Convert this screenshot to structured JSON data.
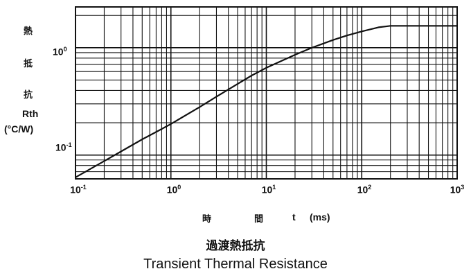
{
  "chart_data": {
    "type": "line",
    "title": "過渡熱抵抗",
    "subtitle": "Transient Thermal Resistance",
    "ylabel_chars": [
      "熱",
      "抵",
      "抗"
    ],
    "ylabel_symbol": "Rth",
    "ylabel_unit": "(°C/W)",
    "xlabel_chars": [
      "時",
      "間",
      "t",
      "(ms)"
    ],
    "x_scale": "log",
    "y_scale": "log",
    "xlim": [
      0.1,
      1000
    ],
    "ylim": [
      0.06,
      2.4
    ],
    "grid": true,
    "x_ticks": [
      {
        "base": "10",
        "exp": "-1"
      },
      {
        "base": "10",
        "exp": "0"
      },
      {
        "base": "10",
        "exp": "1"
      },
      {
        "base": "10",
        "exp": "2"
      },
      {
        "base": "10",
        "exp": "3"
      }
    ],
    "y_ticks": [
      {
        "base": "10",
        "exp": "0"
      },
      {
        "base": "10",
        "exp": "-1"
      }
    ],
    "series": [
      {
        "x": [
          0.1,
          0.15,
          0.2,
          0.3,
          0.5,
          0.7,
          1,
          2,
          3,
          5,
          7,
          10,
          20,
          30,
          50,
          70,
          100,
          150,
          200,
          300,
          500,
          1000
        ],
        "y": [
          0.062,
          0.076,
          0.088,
          0.108,
          0.14,
          0.164,
          0.195,
          0.28,
          0.35,
          0.46,
          0.55,
          0.65,
          0.86,
          1.0,
          1.18,
          1.3,
          1.42,
          1.55,
          1.6,
          1.6,
          1.6,
          1.6
        ]
      }
    ]
  }
}
